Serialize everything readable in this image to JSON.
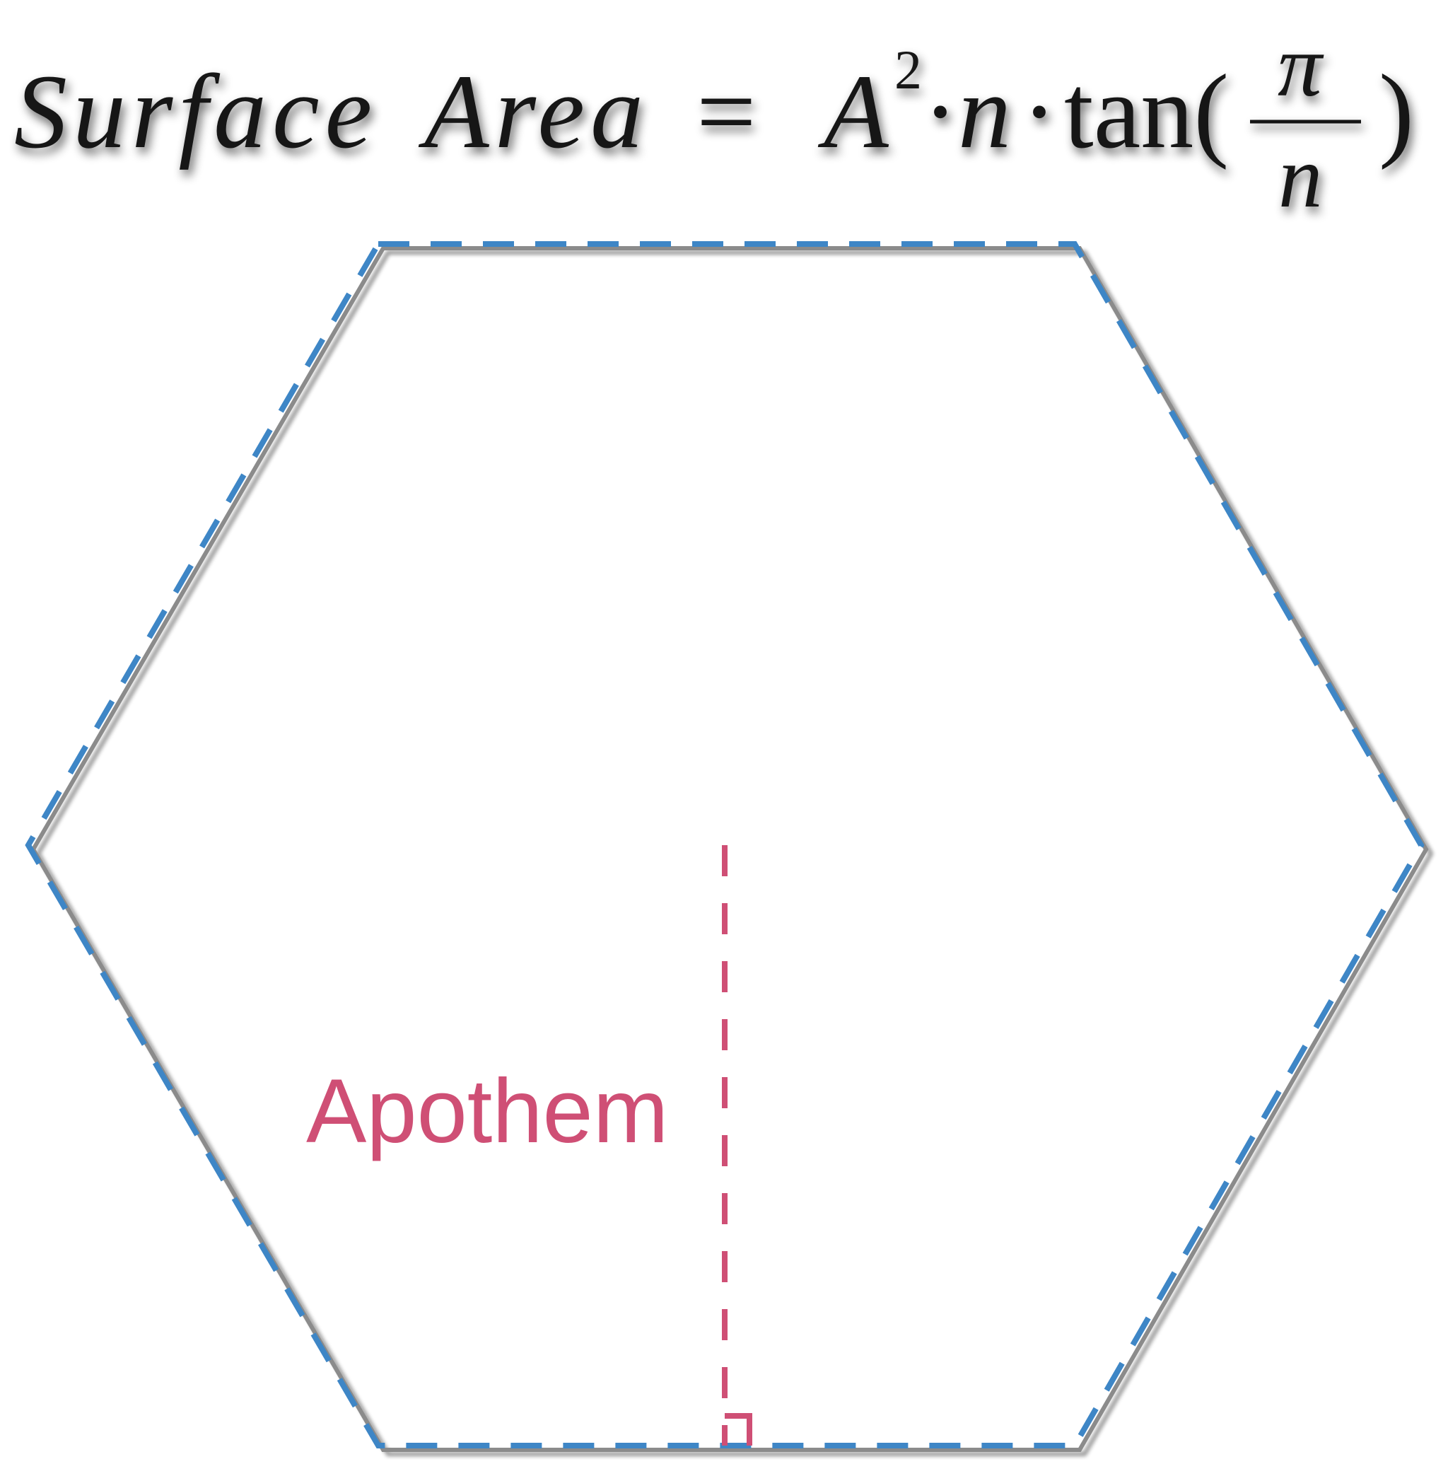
{
  "formula": {
    "lhs_word1": "Surface",
    "lhs_word2": "Area",
    "equals": "=",
    "base": "A",
    "exponent": "2",
    "dot1": "·",
    "n1": "n",
    "dot2": "·",
    "func": "tan(",
    "numerator": "π",
    "denominator": "n",
    "close_paren": ")"
  },
  "labels": {
    "apothem": "Apothem"
  },
  "colors": {
    "hexagon_stroke": "#3e86c6",
    "apothem_stroke": "#cf4f75",
    "formula_text": "#161616",
    "shadow": "#000000",
    "background": "#ffffff"
  },
  "shape": {
    "type": "regular-hexagon",
    "sides": 6
  }
}
